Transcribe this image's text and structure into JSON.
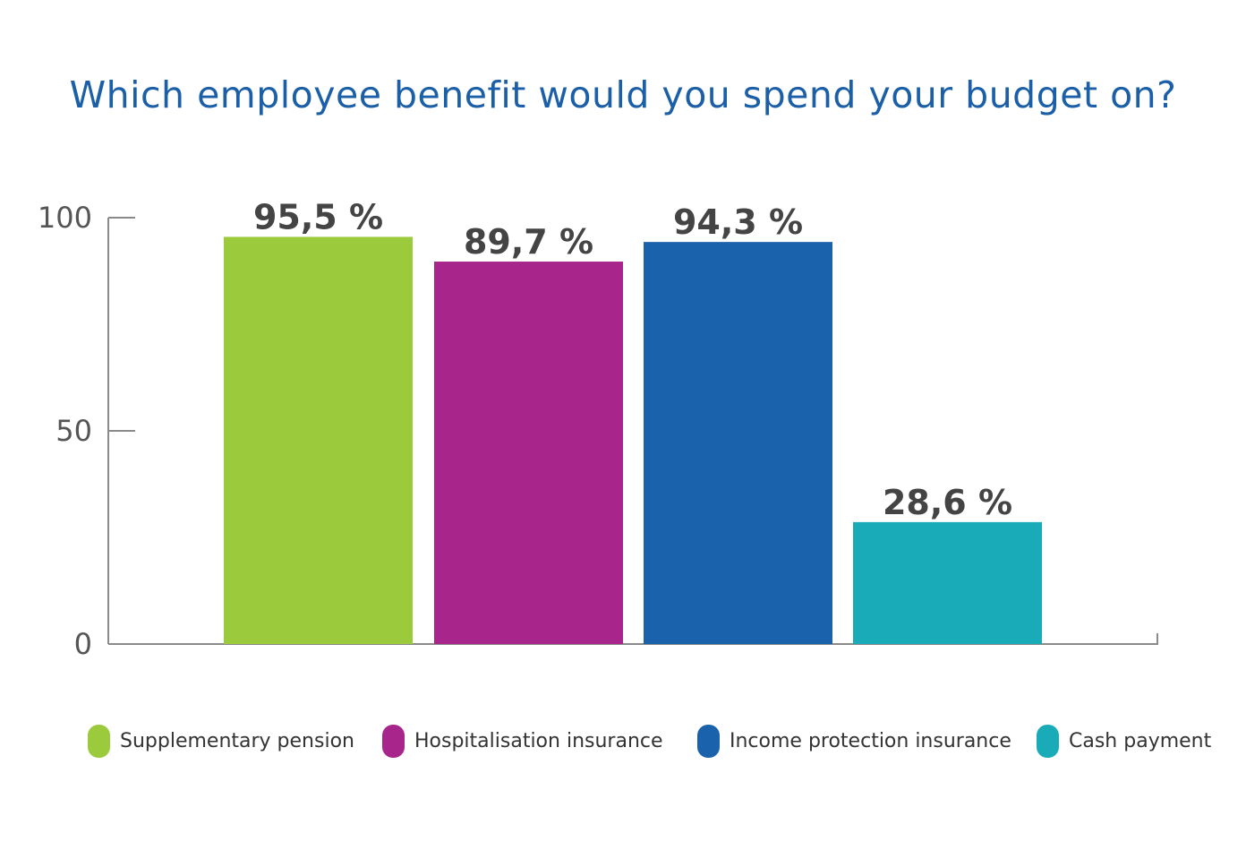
{
  "chart_data": {
    "type": "bar",
    "title": "Which employee benefit would you spend your budget on?",
    "categories": [
      "Supplementary pension",
      "Hospitalisation insurance",
      "Income protection insurance",
      "Cash payment"
    ],
    "values": [
      95.5,
      89.7,
      94.3,
      28.6
    ],
    "value_labels": [
      "95,5 %",
      "89,7 %",
      "94,3 %",
      "28,6 %"
    ],
    "colors": [
      "#9bca3c",
      "#a8258b",
      "#1a62ac",
      "#19abb7"
    ],
    "yticks": [
      0,
      50,
      100
    ],
    "ylim": [
      0,
      100
    ],
    "xlabel": "",
    "ylabel": "",
    "grid": false,
    "legend_position": "bottom"
  },
  "legend": {
    "items": [
      {
        "label": "Supplementary pension",
        "color": "#9bca3c"
      },
      {
        "label": "Hospitalisation insurance",
        "color": "#a8258b"
      },
      {
        "label": "Income protection insurance",
        "color": "#1a62ac"
      },
      {
        "label": "Cash payment",
        "color": "#19abb7"
      }
    ]
  }
}
